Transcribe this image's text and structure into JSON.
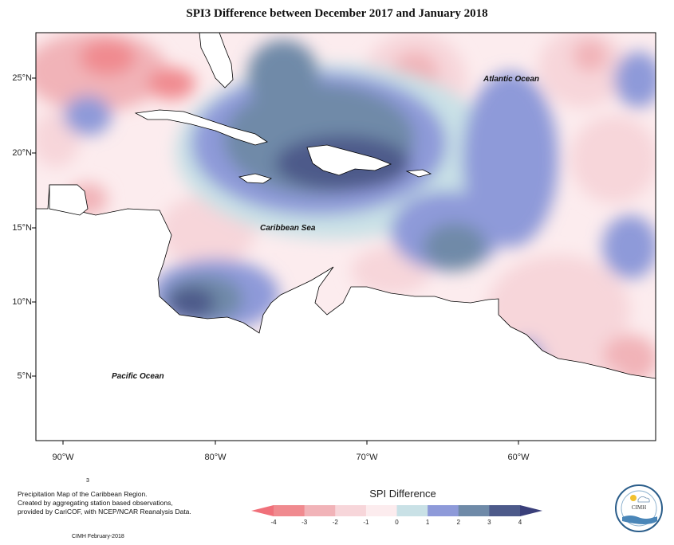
{
  "title": "SPI3 Difference between December 2017 and January 2018",
  "latitude_labels": [
    "25°N",
    "20°N",
    "15°N",
    "10°N",
    "5°N"
  ],
  "longitude_labels": [
    "90°W",
    "80°W",
    "70°W",
    "60°W"
  ],
  "map_labels": {
    "atlantic": "Atlantic Ocean",
    "caribbean": "Caribbean Sea",
    "pacific": "Pacific Ocean"
  },
  "footer": {
    "line1": "Precipitation Map of the Caribbean Region.",
    "line2": "Created by aggregating station based observations,",
    "line3": "provided by CariCOF, with NCEP/NCAR Reanalysis Data.",
    "small_mark": "3",
    "credit": "CIMH February-2018"
  },
  "legend": {
    "title": "SPI Difference",
    "ticks": [
      "-4",
      "-3",
      "-2",
      "-1",
      "0",
      "1",
      "2",
      "3",
      "4"
    ],
    "colors": [
      "#f08a8f",
      "#f1b3b8",
      "#f7d6da",
      "#fcecee",
      "#c9e1e6",
      "#8e9ad9",
      "#6f8aa8",
      "#4d5a8a"
    ],
    "end_colors": {
      "low": "#f0707a",
      "high": "#3a3f7a"
    }
  },
  "logo": {
    "abbr": "CIMH"
  },
  "colors": {
    "dry_strong": "#f08a8f",
    "dry_medium": "#f1b3b8",
    "dry_light": "#f7d6da",
    "neutral": "#fcecee",
    "wet_light": "#c9e1e6",
    "wet_medium": "#8e9ad9",
    "wet_strong": "#6f8aa8",
    "wet_extreme": "#4d5a8a",
    "land": "#ffffff"
  }
}
